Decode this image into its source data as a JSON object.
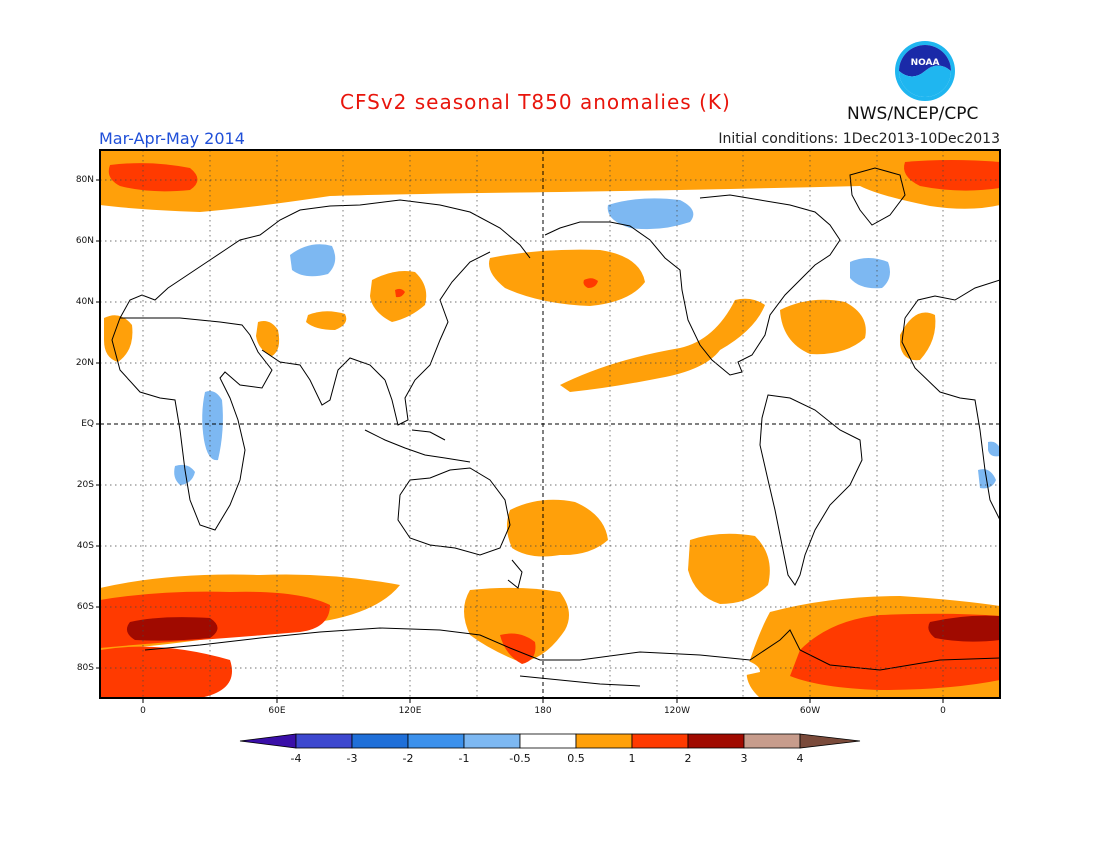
{
  "header": {
    "title": "CFSv2 seasonal T850 anomalies (K)",
    "period": "Mar-Apr-May 2014",
    "initial_conditions": "Initial conditions: 1Dec2013-10Dec2013",
    "agency": "NWS/NCEP/CPC",
    "logo_text": "NOAA"
  },
  "map": {
    "lat_labels": [
      "80N",
      "60N",
      "40N",
      "20N",
      "EQ",
      "20S",
      "40S",
      "60S",
      "80S"
    ],
    "lon_labels": [
      "0",
      "60E",
      "120E",
      "180",
      "120W",
      "60W",
      "0"
    ]
  },
  "colorbar": {
    "labels": [
      "-4",
      "-3",
      "-2",
      "-1",
      "-0.5",
      "0.5",
      "1",
      "2",
      "3",
      "4"
    ],
    "colors": [
      "#3a0fa8",
      "#3d48cf",
      "#1f6fd8",
      "#3c91ec",
      "#7db8f2",
      "#ffffff",
      "#ffa00a",
      "#ff3a00",
      "#a00a00",
      "#c79c8c",
      "#7a4a3a"
    ]
  },
  "colors": {
    "orange": "#ffa00a",
    "red": "#ff3a00",
    "dark_red": "#a00a00",
    "light_blue": "#7db8f2",
    "title_red": "#e8150c",
    "period_blue": "#1f4fd8"
  }
}
